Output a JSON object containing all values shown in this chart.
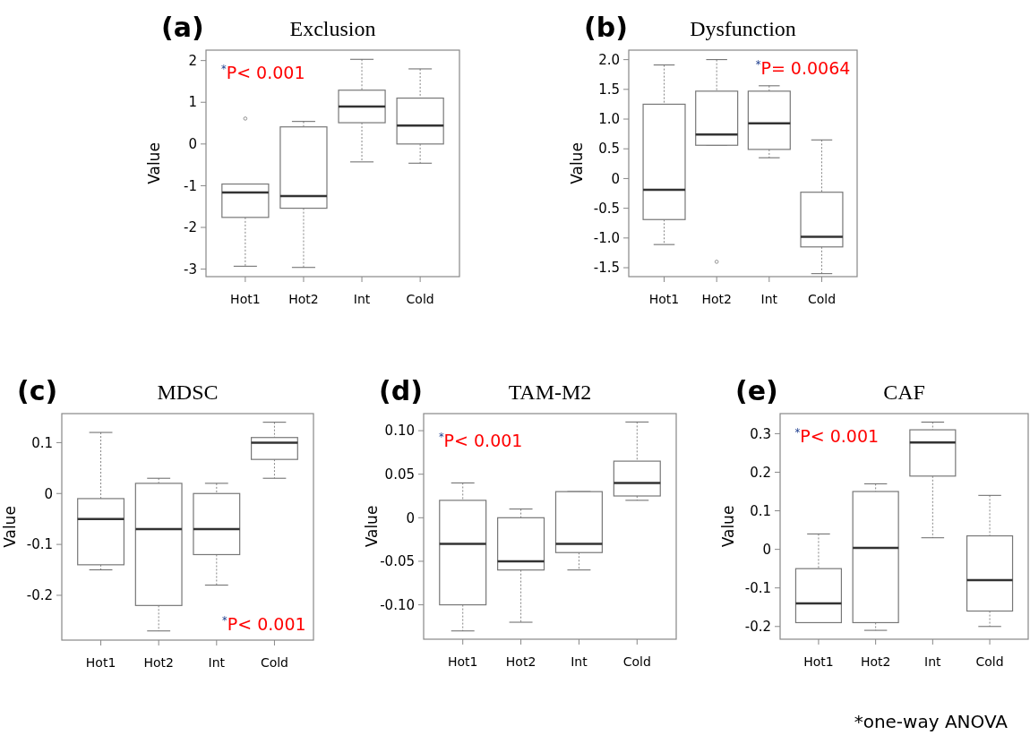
{
  "chart_data": [
    {
      "type": "box",
      "title": "Exclusion",
      "ylabel": "Value",
      "categories": [
        "Hot1",
        "Hot2",
        "Int",
        "Cold"
      ],
      "ylim": [
        -3.18,
        2.25
      ],
      "yticks": [
        -3,
        -2,
        -1,
        0,
        1,
        2
      ],
      "annotations": [
        "(a)",
        "$^{*}$P< 0.001"
      ],
      "boxes": [
        {
          "low": -2.93,
          "q1": -1.76,
          "median": -1.16,
          "q3": -0.96,
          "high": -0.96,
          "outliers": [
            0.61
          ]
        },
        {
          "low": -2.96,
          "q1": -1.54,
          "median": -1.25,
          "q3": 0.41,
          "high": 0.54
        },
        {
          "low": -0.43,
          "q1": 0.51,
          "median": 0.9,
          "q3": 1.29,
          "high": 2.03
        },
        {
          "low": -0.46,
          "q1": 0,
          "median": 0.44,
          "q3": 1.1,
          "high": 1.8
        }
      ]
    },
    {
      "type": "box",
      "title": "Dysfunction",
      "ylabel": "Value",
      "categories": [
        "Hot1",
        "Hot2",
        "Int",
        "Cold"
      ],
      "ylim": [
        -1.65,
        2.16
      ],
      "yticks": [
        {
          "value": -1.5,
          "label": "-1.5"
        },
        {
          "value": -1,
          "label": "-1.0"
        },
        {
          "value": -0.5,
          "label": "-0.5"
        },
        0,
        {
          "value": 0.5,
          "label": "0.5"
        },
        {
          "value": 1,
          "label": "1.0"
        },
        {
          "value": 1.5,
          "label": "1.5"
        },
        {
          "value": 2,
          "label": "2.0"
        }
      ],
      "annotations": [
        "(b)",
        "$^{*}$P= 0.0064"
      ],
      "boxes": [
        {
          "low": -1.11,
          "q1": -0.69,
          "median": -0.19,
          "q3": 1.25,
          "high": 1.91
        },
        {
          "low": 0.56,
          "q1": 0.56,
          "median": 0.74,
          "q3": 1.47,
          "high": 2.0,
          "outliers": [
            -1.4
          ]
        },
        {
          "low": 0.35,
          "q1": 0.49,
          "median": 0.93,
          "q3": 1.47,
          "high": 1.56
        },
        {
          "low": -1.6,
          "q1": -1.15,
          "median": -0.98,
          "q3": -0.23,
          "high": 0.65
        }
      ]
    },
    {
      "type": "box",
      "title": "MDSC",
      "ylabel": "Value",
      "categories": [
        "Hot1",
        "Hot2",
        "Int",
        "Cold"
      ],
      "ylim": [
        -0.288,
        0.157
      ],
      "yticks": [
        -0.2,
        -0.1,
        0,
        0.1
      ],
      "annotations": [
        "(c)",
        "$^{*}$P< 0.001"
      ],
      "boxes": [
        {
          "low": -0.15,
          "q1": -0.14,
          "median": -0.05,
          "q3": -0.01,
          "high": 0.12
        },
        {
          "low": -0.27,
          "q1": -0.22,
          "median": -0.07,
          "q3": 0.02,
          "high": 0.03
        },
        {
          "low": -0.18,
          "q1": -0.12,
          "median": -0.07,
          "q3": 0,
          "high": 0.02
        },
        {
          "low": 0.03,
          "q1": 0.067,
          "median": 0.1,
          "q3": 0.11,
          "high": 0.14
        }
      ]
    },
    {
      "type": "box",
      "title": "TAM-M2",
      "ylabel": "Value",
      "categories": [
        "Hot1",
        "Hot2",
        "Int",
        "Cold"
      ],
      "ylim": [
        -0.1395,
        0.1196
      ],
      "yticks": [
        {
          "value": -0.1,
          "label": "-0.10"
        },
        -0.05,
        0,
        0.05,
        {
          "value": 0.1,
          "label": "0.10"
        }
      ],
      "annotations": [
        "(d)",
        "$^{*}$P< 0.001"
      ],
      "boxes": [
        {
          "low": -0.13,
          "q1": -0.1,
          "median": -0.03,
          "q3": 0.02,
          "high": 0.04
        },
        {
          "low": -0.12,
          "q1": -0.06,
          "median": -0.05,
          "q3": 0,
          "high": 0.01
        },
        {
          "low": -0.06,
          "q1": -0.04,
          "median": -0.03,
          "q3": 0.03,
          "high": 0.03
        },
        {
          "low": 0.02,
          "q1": 0.025,
          "median": 0.04,
          "q3": 0.065,
          "high": 0.11
        }
      ]
    },
    {
      "type": "box",
      "title": "CAF",
      "ylabel": "Value",
      "categories": [
        "Hot1",
        "Hot2",
        "Int",
        "Cold"
      ],
      "ylim": [
        -0.233,
        0.352
      ],
      "yticks": [
        -0.2,
        -0.1,
        0,
        0.1,
        0.2,
        0.3
      ],
      "annotations": [
        "(e)",
        "$^{*}$P< 0.001",
        "*one-way ANOVA"
      ],
      "boxes": [
        {
          "low": -0.19,
          "q1": -0.19,
          "median": -0.14,
          "q3": -0.05,
          "high": 0.04
        },
        {
          "low": -0.21,
          "q1": -0.19,
          "median": 0.004,
          "q3": 0.15,
          "high": 0.17
        },
        {
          "low": 0.03,
          "q1": 0.19,
          "median": 0.277,
          "q3": 0.31,
          "high": 0.33
        },
        {
          "low": -0.2,
          "q1": -0.16,
          "median": -0.08,
          "q3": 0.035,
          "high": 0.14
        }
      ]
    }
  ]
}
